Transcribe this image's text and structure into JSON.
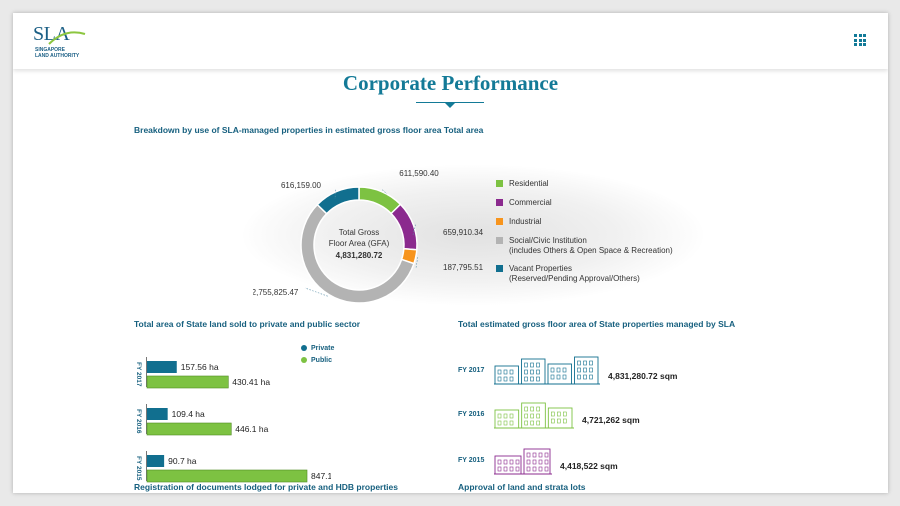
{
  "header": {
    "logo_text": "SLA",
    "logo_subtitle_1": "SINGAPORE",
    "logo_subtitle_2": "LAND AUTHORITY",
    "menu_icon": "grid-menu-icon"
  },
  "page": {
    "title": "Corporate Performance"
  },
  "colors": {
    "brand": "#137a97",
    "residential": "#7dc242",
    "commercial": "#8b2a8e",
    "industrial": "#f7941d",
    "social": "#b3b3b3",
    "vacant": "#116f8f",
    "public": "#7dc242",
    "private": "#116f8f"
  },
  "sections": {
    "breakdown_title": "Breakdown by use of SLA-managed properties in estimated gross floor area Total area",
    "land_sold_title": "Total area of State land sold to private and public sector",
    "gfa_title": "Total estimated gross floor area of State properties managed by SLA",
    "registration_title": "Registration of documents lodged for private and HDB properties",
    "approval_title": "Approval of land and strata lots"
  },
  "chart_data": [
    {
      "type": "pie",
      "variant": "donut",
      "center_label_1": "Total Gross",
      "center_label_2": "Floor Area (GFA)",
      "center_value": "4,831,280.72",
      "slices": [
        {
          "name": "Residential",
          "value": 611590.4,
          "label": "611,590.40",
          "color": "#7dc242"
        },
        {
          "name": "Commercial",
          "value": 659910.34,
          "label": "659,910.34",
          "color": "#8b2a8e"
        },
        {
          "name": "Industrial",
          "value": 187795.51,
          "label": "187,795.51",
          "color": "#f7941d"
        },
        {
          "name": "Social/Civic Institution",
          "value": 2755825.47,
          "label": "2,755,825.47",
          "color": "#b3b3b3"
        },
        {
          "name": "Vacant Properties",
          "value": 616159.0,
          "label": "616,159.00",
          "color": "#116f8f"
        }
      ],
      "legend": [
        {
          "label": "Residential",
          "sub": ""
        },
        {
          "label": "Commercial",
          "sub": ""
        },
        {
          "label": "Industrial",
          "sub": ""
        },
        {
          "label": "Social/Civic Institution",
          "sub": "(includes Others & Open Space & Recreation)"
        },
        {
          "label": "Vacant Properties",
          "sub": "(Reserved/Pending Approval/Others)"
        }
      ],
      "legend_position": "right"
    },
    {
      "type": "bar",
      "orientation": "horizontal",
      "categories": [
        "FY 2017",
        "FY 2016",
        "FY 2015"
      ],
      "series": [
        {
          "name": "Private",
          "values": [
            157.56,
            109.4,
            90.7
          ],
          "labels": [
            "157.56 ha",
            "109.4 ha",
            "90.7 ha"
          ]
        },
        {
          "name": "Public",
          "values": [
            430.41,
            446.1,
            847.1
          ],
          "labels": [
            "430.41 ha",
            "446.1 ha",
            "847.1 ha"
          ]
        }
      ],
      "legend_position": "top-right"
    },
    {
      "type": "table",
      "rows": [
        {
          "year": "FY 2017",
          "value": "4,831,280.72 sqm",
          "color": "#116f8f"
        },
        {
          "year": "FY 2016",
          "value": "4,721,262 sqm",
          "color": "#7dc242"
        },
        {
          "year": "FY 2015",
          "value": "4,418,522 sqm",
          "color": "#8b2a8e"
        }
      ]
    }
  ]
}
